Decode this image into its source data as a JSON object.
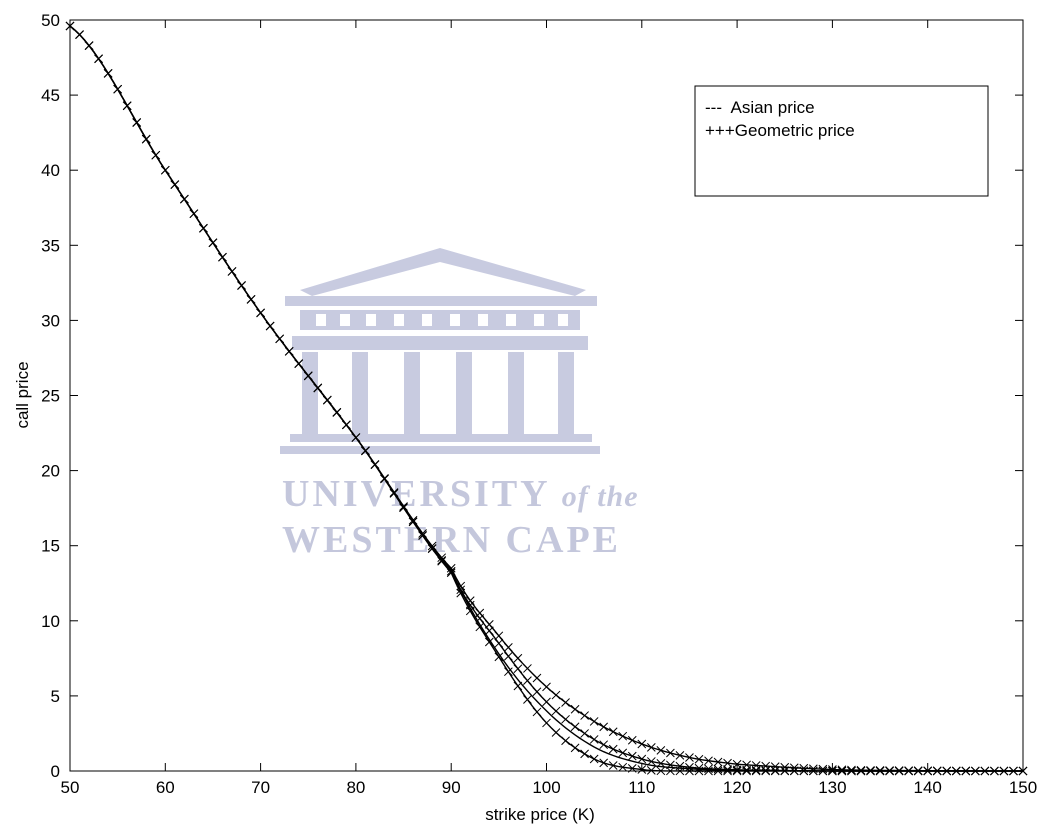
{
  "chart_data": {
    "type": "line",
    "xlabel": "strike price (K)",
    "ylabel": "call price",
    "xlim": [
      50,
      150
    ],
    "ylim": [
      0,
      50
    ],
    "xticks": [
      50,
      60,
      70,
      80,
      90,
      100,
      110,
      120,
      130,
      140,
      150
    ],
    "yticks": [
      0,
      5,
      10,
      15,
      20,
      25,
      30,
      35,
      40,
      45,
      50
    ],
    "grid": false,
    "legend_position": "top-right",
    "legend": [
      "---  Asian price",
      "+++Geometric price"
    ],
    "line_color": "#000000",
    "marker": "x",
    "series": [
      {
        "style": "solid",
        "x": [
          50,
          60,
          70,
          80,
          90,
          95,
          100,
          105,
          110,
          115,
          120,
          130,
          140,
          150
        ],
        "y": [
          49.6,
          40.0,
          30.5,
          22.2,
          13.4,
          7.8,
          4.0,
          1.6,
          0.5,
          0.15,
          0.05,
          0.0,
          0.0,
          0.0
        ]
      },
      {
        "style": "x-marked",
        "x": [
          50,
          60,
          70,
          80,
          90,
          95,
          100,
          105,
          110,
          115,
          120,
          130,
          140,
          150
        ],
        "y": [
          49.6,
          40.0,
          30.5,
          22.2,
          13.5,
          9.0,
          5.6,
          3.3,
          1.8,
          0.9,
          0.45,
          0.1,
          0.02,
          0.0
        ]
      },
      {
        "style": "x-marked",
        "x": [
          50,
          60,
          70,
          80,
          90,
          95,
          100,
          105,
          110,
          115,
          120,
          130,
          140,
          150
        ],
        "y": [
          49.6,
          40.0,
          30.5,
          22.2,
          13.3,
          8.5,
          4.6,
          2.1,
          0.8,
          0.25,
          0.08,
          0.0,
          0.0,
          0.0
        ]
      },
      {
        "style": "x-marked",
        "x": [
          50,
          60,
          70,
          80,
          90,
          95,
          100,
          105,
          110,
          115,
          120,
          130,
          140,
          150
        ],
        "y": [
          49.6,
          40.0,
          30.5,
          22.2,
          13.2,
          7.6,
          3.2,
          0.8,
          0.1,
          0.0,
          0.0,
          0.0,
          0.0,
          0.0
        ]
      }
    ]
  },
  "watermark": {
    "line1": "UNIVERSITY",
    "line1_italic": "of the",
    "line2": "WESTERN CAPE",
    "color": "#c4c7dc"
  }
}
